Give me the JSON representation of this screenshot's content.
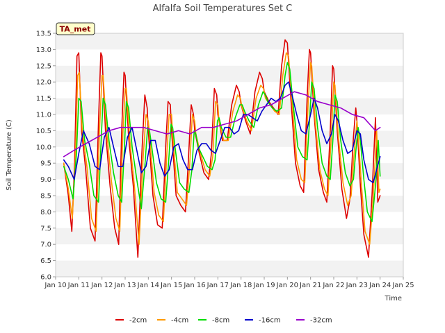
{
  "chart_data": {
    "type": "line",
    "title": "Alfalfa Soil Temperatures Set C",
    "xlabel": "Time",
    "ylabel": "Soil Temperature (C)",
    "ylim": [
      6.0,
      13.5
    ],
    "y_ticks": [
      "6.0",
      "6.5",
      "7.0",
      "7.5",
      "8.0",
      "8.5",
      "9.0",
      "9.5",
      "10.0",
      "10.5",
      "11.0",
      "11.5",
      "12.0",
      "12.5",
      "13.0",
      "13.5"
    ],
    "xlim": [
      10,
      25
    ],
    "x_ticks": [
      {
        "value": 10,
        "label": "Jan 10"
      },
      {
        "value": 11,
        "label": "Jan 11"
      },
      {
        "value": 12,
        "label": "Jan 12"
      },
      {
        "value": 13,
        "label": "Jan 13"
      },
      {
        "value": 14,
        "label": "Jan 14"
      },
      {
        "value": 15,
        "label": "Jan 15"
      },
      {
        "value": 16,
        "label": "Jan 16"
      },
      {
        "value": 17,
        "label": "Jan 17"
      },
      {
        "value": 18,
        "label": "Jan 18"
      },
      {
        "value": 19,
        "label": "Jan 19"
      },
      {
        "value": 20,
        "label": "Jan 20"
      },
      {
        "value": 21,
        "label": "Jan 21"
      },
      {
        "value": 22,
        "label": "Jan 22"
      },
      {
        "value": 23,
        "label": "Jan 23"
      },
      {
        "value": 24,
        "label": "Jan 24"
      },
      {
        "value": 25,
        "label": "Jan 25"
      }
    ],
    "x_unit": "day of January",
    "grid": "horizontal bands",
    "legend_position": "bottom",
    "tag_label": "TA_met",
    "series": [
      {
        "name": "-2cm",
        "color": "#dd0000",
        "x": [
          10.35,
          10.55,
          10.7,
          10.82,
          10.92,
          11.0,
          11.12,
          11.3,
          11.5,
          11.7,
          11.85,
          11.95,
          12.0,
          12.15,
          12.35,
          12.55,
          12.72,
          12.85,
          12.95,
          13.0,
          13.15,
          13.35,
          13.55,
          13.72,
          13.85,
          13.95,
          14.0,
          14.2,
          14.4,
          14.6,
          14.75,
          14.85,
          14.95,
          15.0,
          15.2,
          15.4,
          15.6,
          15.72,
          15.85,
          15.95,
          16.0,
          16.2,
          16.4,
          16.6,
          16.72,
          16.85,
          16.95,
          17.0,
          17.2,
          17.4,
          17.6,
          17.8,
          17.92,
          18.0,
          18.2,
          18.4,
          18.6,
          18.8,
          18.92,
          19.0,
          19.2,
          19.4,
          19.6,
          19.75,
          19.9,
          20.0,
          20.15,
          20.35,
          20.55,
          20.7,
          20.85,
          20.95,
          21.0,
          21.15,
          21.35,
          21.55,
          21.7,
          21.85,
          21.95,
          22.0,
          22.15,
          22.35,
          22.55,
          22.7,
          22.85,
          22.95,
          23.0,
          23.15,
          23.3,
          23.5,
          23.65,
          23.8,
          23.9,
          24.0
        ],
        "y": [
          9.5,
          8.5,
          7.4,
          9.5,
          12.8,
          12.9,
          10.5,
          9.3,
          7.5,
          7.1,
          10.8,
          12.9,
          12.8,
          10.5,
          8.8,
          7.5,
          7.0,
          10.5,
          12.3,
          12.2,
          10.3,
          8.8,
          6.6,
          9.8,
          11.6,
          11.2,
          10.5,
          8.5,
          7.6,
          7.5,
          10.0,
          11.4,
          11.3,
          10.5,
          8.5,
          8.2,
          8.0,
          9.5,
          11.3,
          11.0,
          10.5,
          9.8,
          9.2,
          9.0,
          9.8,
          11.8,
          11.6,
          11.0,
          10.2,
          10.2,
          11.3,
          11.9,
          11.7,
          11.3,
          10.8,
          10.4,
          11.7,
          12.3,
          12.1,
          11.7,
          11.4,
          11.2,
          11.0,
          12.5,
          13.3,
          13.2,
          11.5,
          9.5,
          8.8,
          8.6,
          11.5,
          13.0,
          12.9,
          11.0,
          9.3,
          8.6,
          8.3,
          10.5,
          12.5,
          12.4,
          10.5,
          8.7,
          7.8,
          8.4,
          10.3,
          11.2,
          10.8,
          8.8,
          7.3,
          6.6,
          8.5,
          10.9,
          8.3,
          8.5
        ]
      },
      {
        "name": "-4cm",
        "color": "#ff9900",
        "x": [
          10.35,
          10.55,
          10.72,
          10.85,
          10.95,
          11.02,
          11.15,
          11.35,
          11.55,
          11.75,
          11.9,
          12.0,
          12.05,
          12.2,
          12.4,
          12.6,
          12.77,
          12.9,
          13.0,
          13.05,
          13.2,
          13.4,
          13.6,
          13.77,
          13.9,
          14.0,
          14.05,
          14.25,
          14.45,
          14.65,
          14.8,
          14.9,
          15.0,
          15.05,
          15.25,
          15.45,
          15.65,
          15.78,
          15.9,
          16.0,
          16.05,
          16.25,
          16.45,
          16.65,
          16.78,
          16.9,
          17.0,
          17.05,
          17.25,
          17.45,
          17.65,
          17.85,
          17.97,
          18.05,
          18.25,
          18.45,
          18.65,
          18.85,
          18.97,
          19.05,
          19.25,
          19.45,
          19.65,
          19.8,
          19.95,
          20.05,
          20.2,
          20.4,
          20.6,
          20.75,
          20.9,
          21.0,
          21.05,
          21.2,
          21.4,
          21.6,
          21.75,
          21.9,
          22.0,
          22.05,
          22.2,
          22.4,
          22.6,
          22.75,
          22.9,
          23.0,
          23.05,
          23.2,
          23.35,
          23.55,
          23.7,
          23.85,
          23.95,
          24.0
        ],
        "y": [
          9.5,
          8.7,
          7.8,
          9.6,
          12.2,
          12.3,
          10.5,
          9.4,
          7.8,
          7.4,
          10.6,
          12.2,
          12.2,
          10.5,
          9.0,
          7.8,
          7.4,
          10.4,
          11.8,
          11.8,
          10.2,
          8.8,
          7.0,
          9.6,
          11.0,
          10.8,
          10.4,
          8.6,
          7.9,
          7.7,
          9.8,
          11.0,
          11.0,
          10.4,
          8.6,
          8.4,
          8.2,
          9.4,
          11.0,
          10.8,
          10.4,
          9.8,
          9.3,
          9.1,
          9.7,
          11.4,
          11.3,
          10.8,
          10.2,
          10.2,
          11.1,
          11.6,
          11.5,
          11.2,
          10.8,
          10.5,
          11.5,
          11.9,
          11.8,
          11.5,
          11.3,
          11.1,
          11.0,
          12.2,
          12.9,
          12.8,
          11.4,
          9.6,
          9.0,
          8.9,
          11.4,
          12.6,
          12.5,
          10.8,
          9.3,
          8.7,
          8.5,
          10.4,
          12.0,
          11.9,
          10.3,
          8.9,
          8.2,
          8.5,
          10.0,
          10.8,
          10.4,
          8.8,
          7.4,
          7.0,
          8.4,
          10.5,
          8.6,
          8.7
        ]
      },
      {
        "name": "-8cm",
        "color": "#00dd00",
        "x": [
          10.35,
          10.55,
          10.75,
          10.9,
          11.0,
          11.1,
          11.25,
          11.45,
          11.65,
          11.85,
          11.97,
          12.05,
          12.15,
          12.3,
          12.5,
          12.7,
          12.85,
          12.97,
          13.05,
          13.15,
          13.3,
          13.5,
          13.7,
          13.85,
          13.97,
          14.05,
          14.15,
          14.35,
          14.55,
          14.75,
          14.88,
          14.98,
          15.05,
          15.15,
          15.35,
          15.55,
          15.75,
          15.88,
          15.98,
          16.05,
          16.15,
          16.35,
          16.55,
          16.75,
          16.88,
          16.98,
          17.05,
          17.15,
          17.35,
          17.55,
          17.75,
          17.95,
          18.05,
          18.15,
          18.35,
          18.55,
          18.75,
          18.95,
          19.05,
          19.15,
          19.35,
          19.55,
          19.75,
          19.9,
          20.0,
          20.1,
          20.25,
          20.45,
          20.65,
          20.85,
          20.97,
          21.05,
          21.15,
          21.3,
          21.5,
          21.7,
          21.85,
          21.97,
          22.05,
          22.15,
          22.3,
          22.5,
          22.7,
          22.85,
          22.97,
          23.05,
          23.15,
          23.3,
          23.45,
          23.65,
          23.8,
          23.92,
          24.0
        ],
        "y": [
          9.4,
          9.0,
          8.4,
          9.8,
          11.5,
          11.4,
          10.2,
          9.5,
          8.5,
          8.3,
          10.3,
          11.5,
          11.3,
          10.2,
          9.2,
          8.5,
          8.3,
          10.0,
          11.4,
          11.2,
          10.0,
          9.0,
          8.1,
          9.4,
          10.6,
          10.5,
          10.0,
          8.9,
          8.4,
          8.3,
          9.6,
          10.7,
          10.6,
          10.0,
          8.9,
          8.7,
          8.6,
          9.3,
          10.5,
          10.4,
          10.0,
          9.7,
          9.4,
          9.3,
          9.6,
          10.8,
          10.9,
          10.6,
          10.3,
          10.3,
          10.9,
          11.3,
          11.3,
          11.1,
          10.8,
          10.6,
          11.3,
          11.7,
          11.6,
          11.4,
          11.2,
          11.1,
          11.2,
          12.2,
          12.6,
          12.4,
          11.3,
          10.0,
          9.7,
          9.6,
          11.0,
          12.0,
          11.8,
          10.6,
          9.5,
          9.1,
          9.0,
          10.3,
          11.6,
          11.4,
          10.2,
          9.2,
          8.8,
          9.0,
          10.0,
          10.6,
          10.2,
          9.0,
          8.0,
          7.7,
          8.8,
          10.2,
          9.1
        ]
      },
      {
        "name": "-16cm",
        "color": "#0000cc",
        "x": [
          10.35,
          10.55,
          10.8,
          11.0,
          11.2,
          11.45,
          11.7,
          11.9,
          12.1,
          12.3,
          12.5,
          12.7,
          12.9,
          13.1,
          13.3,
          13.5,
          13.7,
          13.9,
          14.1,
          14.3,
          14.5,
          14.7,
          14.9,
          15.1,
          15.3,
          15.5,
          15.7,
          15.9,
          16.1,
          16.3,
          16.5,
          16.7,
          16.9,
          17.1,
          17.3,
          17.5,
          17.7,
          17.9,
          18.1,
          18.3,
          18.5,
          18.7,
          18.9,
          19.1,
          19.3,
          19.5,
          19.7,
          19.9,
          20.05,
          20.2,
          20.4,
          20.6,
          20.8,
          21.0,
          21.15,
          21.3,
          21.5,
          21.7,
          21.9,
          22.05,
          22.2,
          22.4,
          22.6,
          22.8,
          23.0,
          23.15,
          23.3,
          23.5,
          23.7,
          23.85,
          24.0
        ],
        "y": [
          9.6,
          9.4,
          9.0,
          9.8,
          10.5,
          10.1,
          9.4,
          9.3,
          10.3,
          10.6,
          10.0,
          9.4,
          9.4,
          10.3,
          10.6,
          9.9,
          9.2,
          9.4,
          10.2,
          10.2,
          9.5,
          9.1,
          9.3,
          10.0,
          10.1,
          9.6,
          9.3,
          9.3,
          9.9,
          10.1,
          10.1,
          9.9,
          9.8,
          10.2,
          10.6,
          10.6,
          10.4,
          10.5,
          11.0,
          11.0,
          10.9,
          10.8,
          11.1,
          11.3,
          11.5,
          11.4,
          11.5,
          11.9,
          12.0,
          11.6,
          11.0,
          10.5,
          10.4,
          11.0,
          11.5,
          11.2,
          10.5,
          10.1,
          10.4,
          11.0,
          10.8,
          10.2,
          9.8,
          9.9,
          10.5,
          10.4,
          9.6,
          9.0,
          8.9,
          9.3,
          9.7
        ]
      },
      {
        "name": "-32cm",
        "color": "#9900cc",
        "x": [
          10.35,
          10.8,
          11.3,
          11.8,
          12.3,
          12.8,
          13.3,
          13.8,
          14.3,
          14.8,
          15.3,
          15.8,
          16.3,
          16.8,
          17.3,
          17.8,
          18.3,
          18.8,
          19.3,
          19.8,
          20.3,
          20.8,
          21.3,
          21.8,
          22.3,
          22.8,
          23.3,
          23.8,
          24.0
        ],
        "y": [
          9.7,
          9.9,
          10.1,
          10.3,
          10.5,
          10.6,
          10.6,
          10.6,
          10.5,
          10.4,
          10.5,
          10.4,
          10.6,
          10.6,
          10.7,
          10.8,
          11.0,
          11.2,
          11.3,
          11.5,
          11.7,
          11.6,
          11.4,
          11.3,
          11.2,
          11.0,
          10.9,
          10.5,
          10.6
        ]
      }
    ]
  }
}
